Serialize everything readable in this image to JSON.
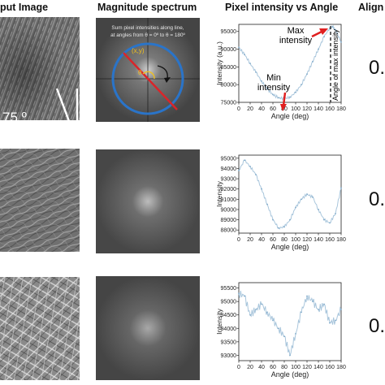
{
  "headers": [
    "put Image",
    "Magnitude spectrum",
    "Pixel intensity vs Angle",
    "Align"
  ],
  "row1": {
    "angle_label": "75 º",
    "spectrum_caption_1": "Sum pixel intensities along line,",
    "spectrum_caption_2": "at angles from θ = 0º to θ = 180º",
    "xy_label": "(x,y)",
    "theta_label": "θ",
    "max_label_1": "Max",
    "max_label_2": "intensity",
    "min_label_1": "Min",
    "min_label_2": "intensity",
    "max_angle_label": "Angle of max intensity",
    "value": "0."
  },
  "row2": {
    "value": "0."
  },
  "row3": {
    "value": "0."
  },
  "colors": {
    "circle": "#2a74c9",
    "line": "#d9252a",
    "arrow": "#e02020",
    "series": "#a9c6dc",
    "theta": "#f0c020"
  },
  "chart_data": [
    {
      "type": "line",
      "title": "",
      "xlabel": "Angle (deg)",
      "ylabel": "Intensity (a.u.)",
      "xlim": [
        0,
        180
      ],
      "ylim": [
        75000,
        97000
      ],
      "xticks": [
        0,
        20,
        40,
        60,
        80,
        100,
        120,
        140,
        160,
        180
      ],
      "yticks": [
        75000,
        80000,
        85000,
        90000,
        95000
      ],
      "x": [
        0,
        10,
        20,
        30,
        40,
        50,
        60,
        70,
        80,
        90,
        100,
        110,
        120,
        130,
        140,
        150,
        160,
        165,
        170,
        180
      ],
      "y": [
        90500,
        88500,
        86000,
        83500,
        81000,
        78800,
        77200,
        76300,
        76000,
        76500,
        77800,
        80000,
        83000,
        86500,
        90000,
        93500,
        96000,
        96300,
        95500,
        92000
      ]
    },
    {
      "type": "line",
      "title": "",
      "xlabel": "Angle (deg)",
      "ylabel": "Intensity",
      "xlim": [
        0,
        180
      ],
      "ylim": [
        87700,
        95300
      ],
      "xticks": [
        0,
        20,
        40,
        60,
        80,
        100,
        120,
        140,
        160,
        180
      ],
      "yticks": [
        88000,
        89000,
        90000,
        91000,
        92000,
        93000,
        94000,
        95000
      ],
      "x": [
        0,
        10,
        20,
        30,
        40,
        50,
        60,
        70,
        80,
        90,
        100,
        110,
        120,
        130,
        140,
        150,
        160,
        170,
        180
      ],
      "y": [
        93800,
        94800,
        94200,
        93400,
        92000,
        90500,
        89000,
        88200,
        88300,
        89000,
        90200,
        91000,
        91500,
        91200,
        90000,
        89000,
        88700,
        89600,
        92100
      ]
    },
    {
      "type": "line",
      "title": "",
      "xlabel": "Angle (deg)",
      "ylabel": "Intensity",
      "xlim": [
        0,
        180
      ],
      "ylim": [
        92800,
        95700
      ],
      "xticks": [
        0,
        20,
        40,
        60,
        80,
        100,
        120,
        140,
        160,
        180
      ],
      "yticks": [
        93000,
        93500,
        94000,
        94500,
        95000,
        95500
      ],
      "x": [
        0,
        10,
        20,
        30,
        40,
        50,
        60,
        70,
        80,
        90,
        100,
        110,
        120,
        130,
        140,
        150,
        160,
        170,
        180
      ],
      "y": [
        95300,
        95200,
        94500,
        94700,
        94900,
        94600,
        94300,
        94000,
        93700,
        93000,
        93800,
        94600,
        95200,
        95000,
        94700,
        94900,
        94200,
        94300,
        94700
      ]
    }
  ]
}
